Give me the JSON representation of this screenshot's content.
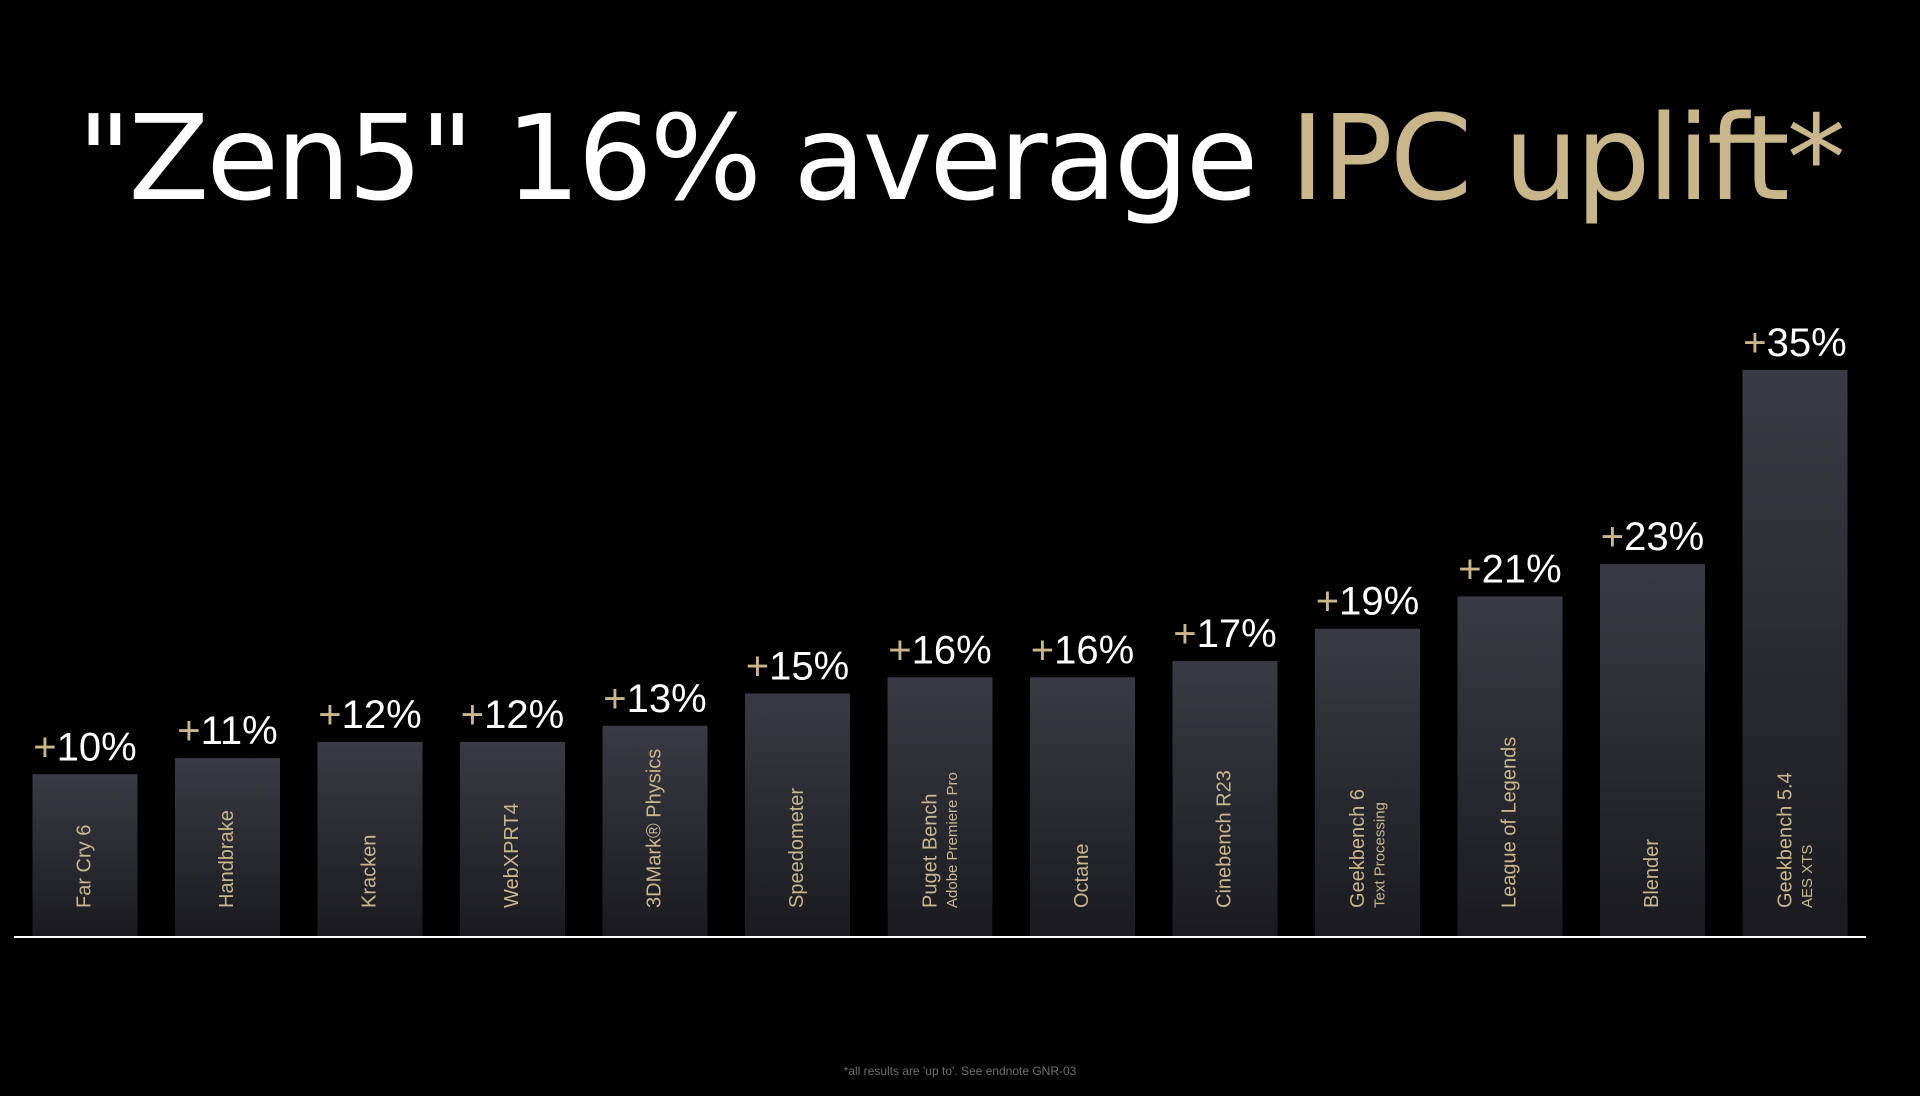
{
  "title": {
    "part1": "\"Zen5\" 16% average ",
    "part2": "IPC uplift*"
  },
  "footnote": "*all results are 'up to'. See endnote GNR-03",
  "colors": {
    "background": "#000000",
    "title_white": "#ffffff",
    "accent_gold": "#c9b68a",
    "bar_top": "#3a3a44",
    "bar_bottom": "#1a1a20",
    "baseline": "#ffffff"
  },
  "chart_data": {
    "type": "bar",
    "title": "\"Zen5\" 16% average IPC uplift*",
    "xlabel": "",
    "ylabel": "",
    "ylim": [
      0,
      40
    ],
    "grid": false,
    "legend": "none",
    "categories": [
      {
        "name": "Far Cry 6",
        "sub": ""
      },
      {
        "name": "Handbrake",
        "sub": ""
      },
      {
        "name": "Kracken",
        "sub": ""
      },
      {
        "name": "WebXPRT4",
        "sub": ""
      },
      {
        "name": "3DMark® Physics",
        "sub": ""
      },
      {
        "name": "Speedometer",
        "sub": ""
      },
      {
        "name": "Puget Bench",
        "sub": "Adobe Premiere Pro"
      },
      {
        "name": "Octane",
        "sub": ""
      },
      {
        "name": "Cinebench R23",
        "sub": ""
      },
      {
        "name": "Geekbench 6",
        "sub": "Text Processing"
      },
      {
        "name": "League of Legends",
        "sub": ""
      },
      {
        "name": "Blender",
        "sub": ""
      },
      {
        "name": "Geekbench 5.4",
        "sub": "AES XTS"
      }
    ],
    "values": [
      10,
      11,
      12,
      12,
      13,
      15,
      16,
      16,
      17,
      19,
      21,
      23,
      35
    ],
    "label_prefix": "+",
    "label_suffix": "%"
  }
}
